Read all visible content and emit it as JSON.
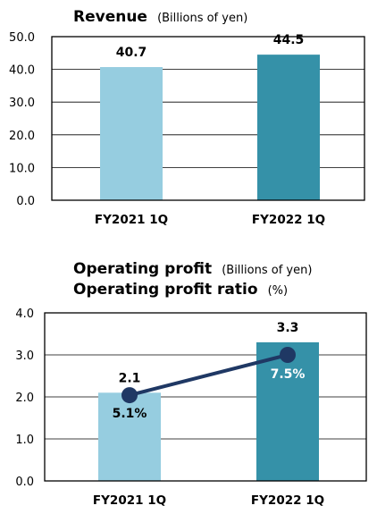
{
  "chart_data": [
    {
      "type": "bar",
      "title": "Revenue",
      "unit": "(Billions of yen)",
      "categories": [
        "FY2021 1Q",
        "FY2022 1Q"
      ],
      "values": [
        40.7,
        44.5
      ],
      "value_labels": [
        "40.7",
        "44.5"
      ],
      "ylim": [
        0,
        50
      ],
      "yticks": [
        "0.0",
        "10.0",
        "20.0",
        "30.0",
        "40.0",
        "50.0"
      ],
      "grid": true,
      "colors": {
        "bar1": "#96cde0",
        "bar2": "#3591a8"
      }
    },
    {
      "type": "bar+line",
      "title_line1": "Operating profit",
      "unit_line1": "(Billions of yen)",
      "title_line2": "Operating profit ratio",
      "unit_line2": "(%)",
      "categories": [
        "FY2021 1Q",
        "FY2022 1Q"
      ],
      "values": [
        2.1,
        3.3
      ],
      "value_labels": [
        "2.1",
        "3.3"
      ],
      "ylim": [
        0,
        4
      ],
      "yticks": [
        "0.0",
        "1.0",
        "2.0",
        "3.0",
        "4.0"
      ],
      "grid": true,
      "series": [
        {
          "type": "line",
          "values": [
            5.1,
            7.5
          ],
          "value_labels": [
            "5.1%",
            "7.5%"
          ]
        }
      ],
      "colors": {
        "bar1": "#96cde0",
        "bar2": "#3591a8",
        "line": "#1f3864",
        "line_label_light": "#ffffff"
      }
    }
  ]
}
